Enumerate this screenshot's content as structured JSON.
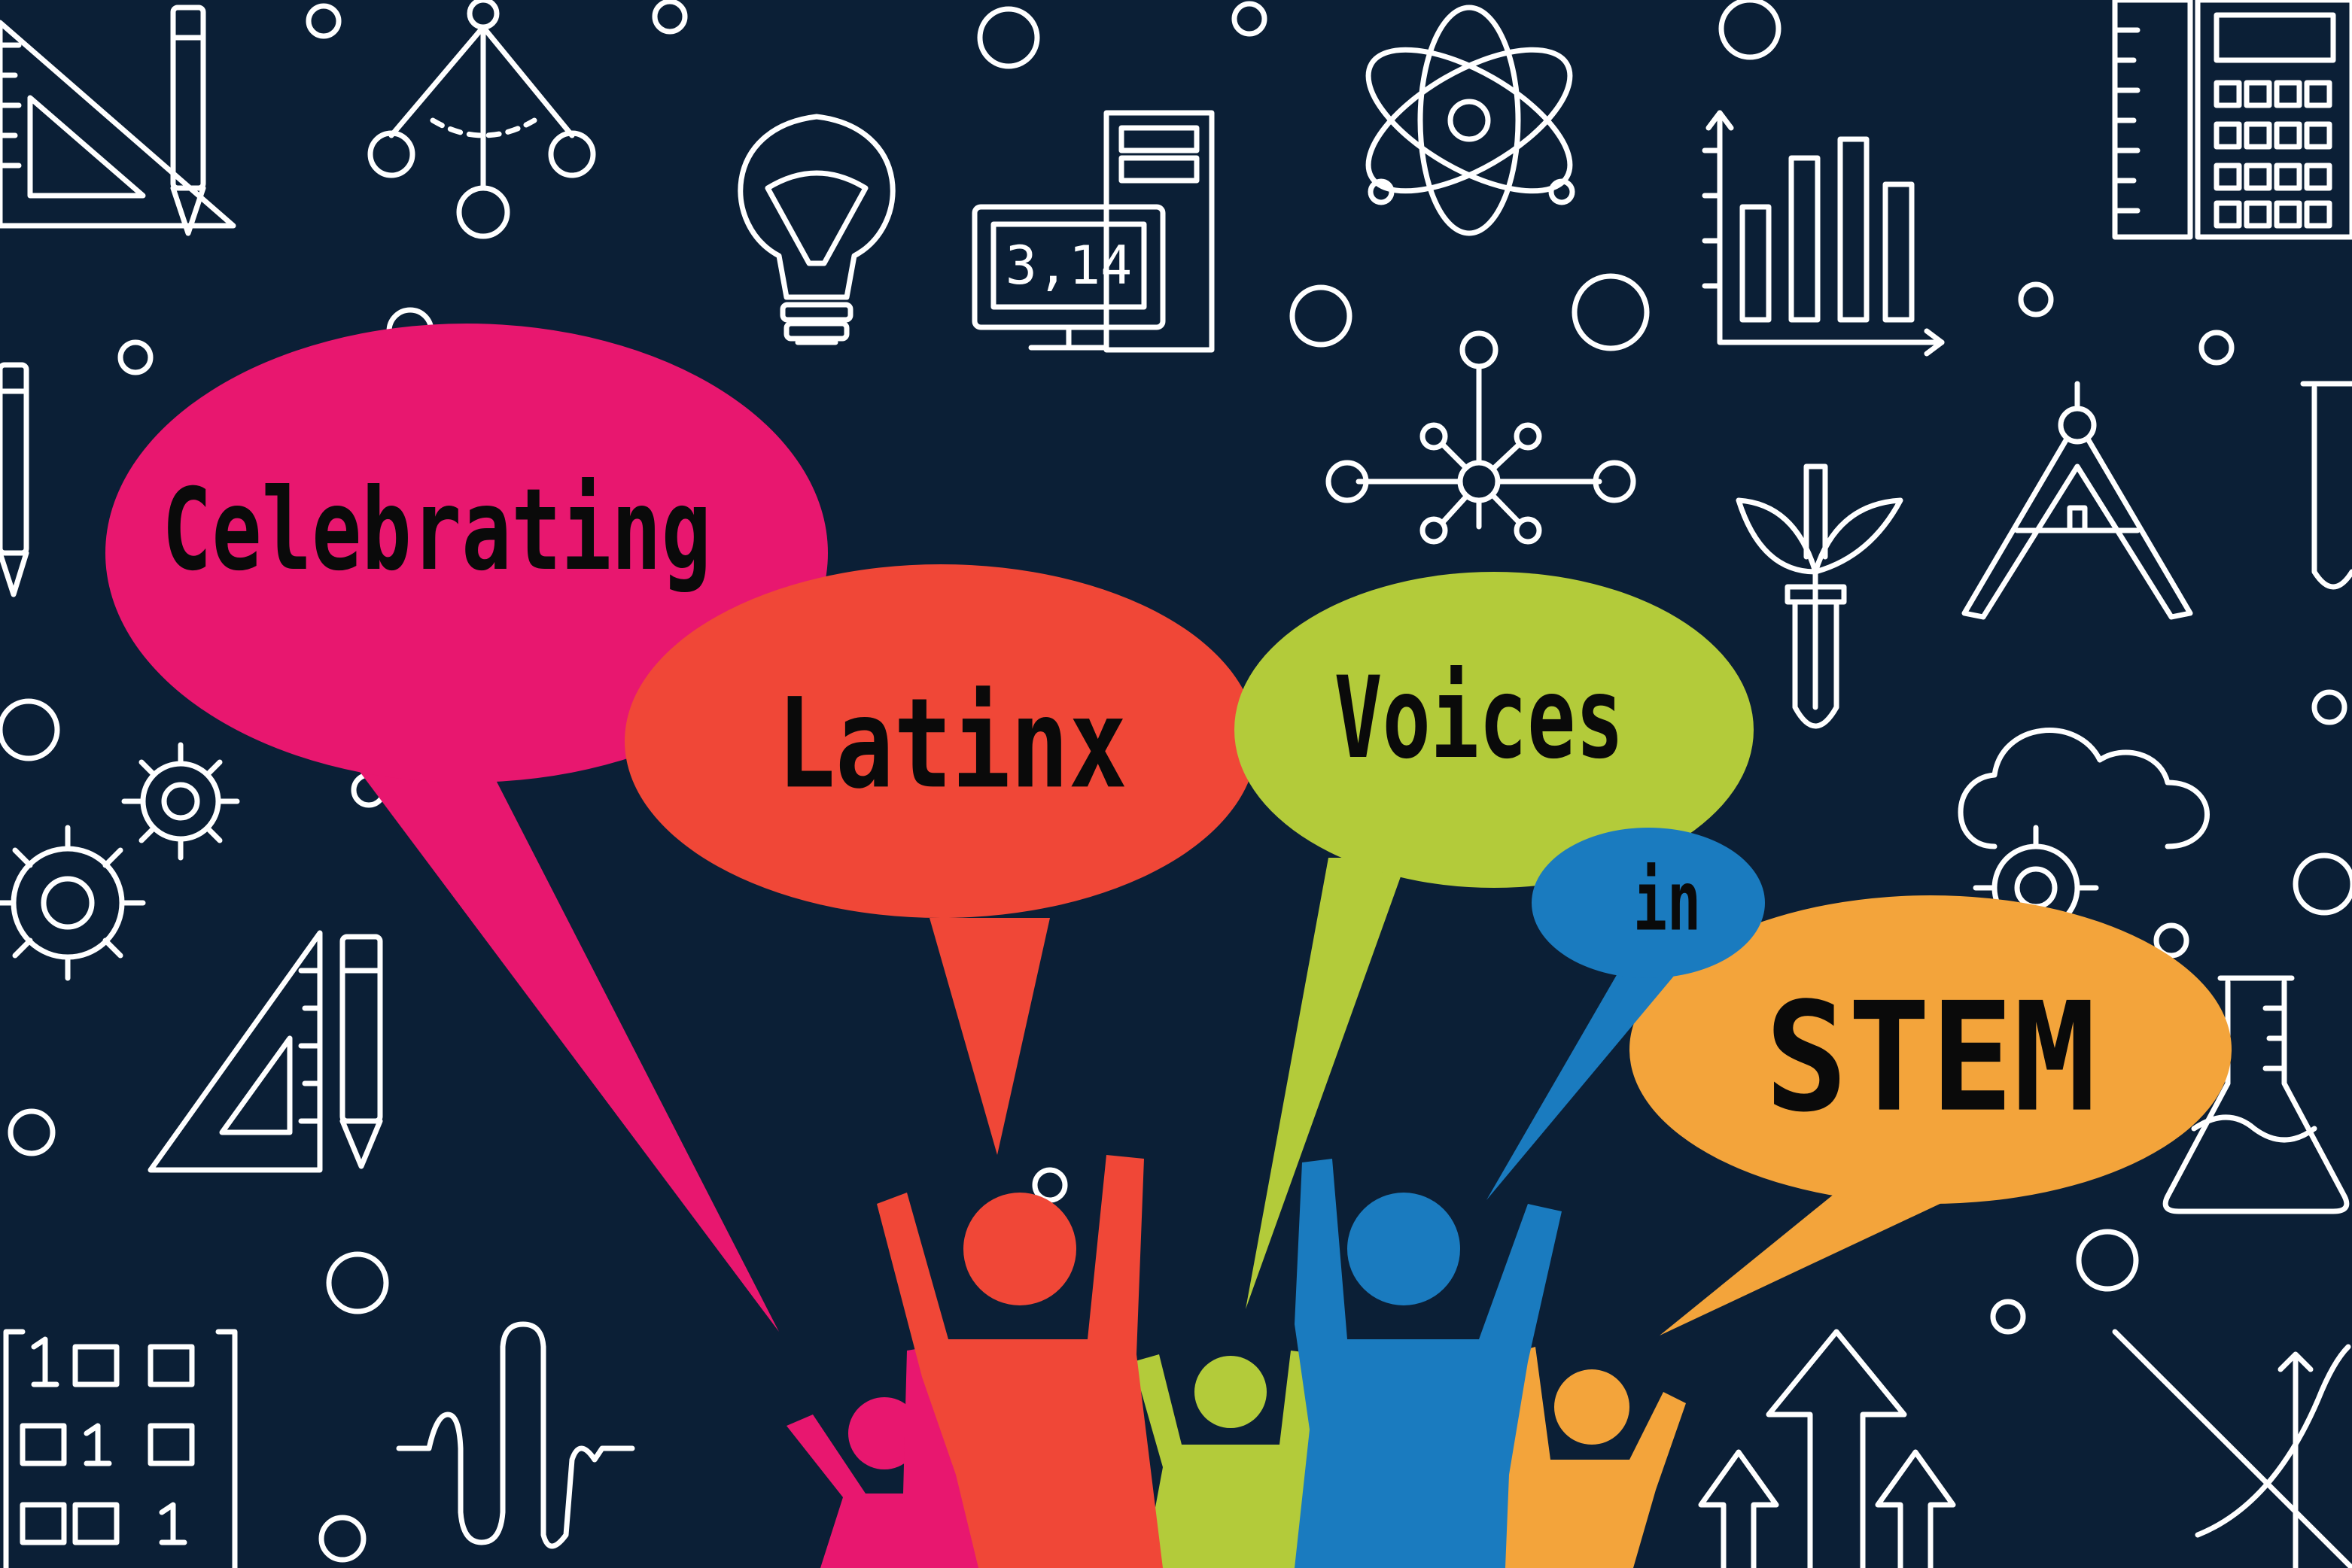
{
  "banner": {
    "word1": "Celebrating",
    "word2": "Latinx",
    "word3": "Voices",
    "word4": "in",
    "word5": "STEM"
  },
  "icons": {
    "calculator_display": "3,14",
    "binary_row1": "100",
    "binary_row2": "010",
    "binary_row3": "001"
  },
  "colors": {
    "background": "#0b1f36",
    "line_art": "#ffffff",
    "magenta": "#e8176f",
    "red_orange": "#f04737",
    "lime": "#b3cb3a",
    "blue": "#1a7bbf",
    "orange": "#f3a43b",
    "text": "#0a0a0a"
  },
  "icon_names": [
    "set-square-icon",
    "pencil-icon",
    "pendulum-molecule-icon",
    "light-bulb-icon",
    "computer-icon",
    "atom-icon",
    "bar-chart-icon",
    "calculator-icon",
    "network-icon",
    "sprout-test-tube-icon",
    "compass-icon",
    "gears-icon",
    "cloud-gear-icon",
    "flask-icon",
    "binary-matrix-icon",
    "wave-icon",
    "arrows-up-icon",
    "graph-axes-icon",
    "test-tube-icon"
  ]
}
